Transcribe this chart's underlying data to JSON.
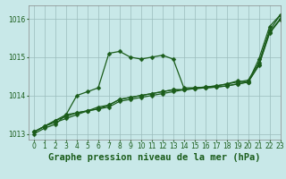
{
  "background_color": "#c8e8e8",
  "grid_color": "#9bbcbc",
  "line_color": "#1a5c1a",
  "title": "Graphe pression niveau de la mer (hPa)",
  "xlim": [
    -0.5,
    23
  ],
  "ylim": [
    1012.85,
    1016.35
  ],
  "yticks": [
    1013,
    1014,
    1015,
    1016
  ],
  "xticks": [
    0,
    1,
    2,
    3,
    4,
    5,
    6,
    7,
    8,
    9,
    10,
    11,
    12,
    13,
    14,
    15,
    16,
    17,
    18,
    19,
    20,
    21,
    22,
    23
  ],
  "series": [
    [
      1013.05,
      1013.2,
      1013.35,
      1013.5,
      1013.55,
      1013.6,
      1013.65,
      1013.7,
      1013.85,
      1013.9,
      1013.95,
      1014.0,
      1014.05,
      1014.1,
      1014.15,
      1014.2,
      1014.22,
      1014.25,
      1014.3,
      1014.35,
      1014.4,
      1014.85,
      1015.7,
      1016.1
    ],
    [
      1013.05,
      1013.2,
      1013.35,
      1013.45,
      1013.55,
      1013.6,
      1013.7,
      1013.75,
      1013.9,
      1013.95,
      1014.0,
      1014.05,
      1014.1,
      1014.15,
      1014.15,
      1014.18,
      1014.2,
      1014.22,
      1014.25,
      1014.3,
      1014.35,
      1014.8,
      1015.65,
      1016.0
    ],
    [
      1013.05,
      1013.2,
      1013.3,
      1013.4,
      1013.5,
      1013.6,
      1013.65,
      1013.75,
      1013.9,
      1013.95,
      1014.0,
      1014.05,
      1014.1,
      1014.15,
      1014.15,
      1014.18,
      1014.2,
      1014.22,
      1014.25,
      1014.3,
      1014.35,
      1014.78,
      1015.62,
      1015.98
    ],
    [
      1013.0,
      1013.15,
      1013.25,
      1013.5,
      1014.0,
      1014.1,
      1014.2,
      1015.1,
      1015.15,
      1015.0,
      1014.95,
      1015.0,
      1015.05,
      1014.95,
      1014.2,
      1014.2,
      1014.22,
      1014.25,
      1014.3,
      1014.38,
      1014.35,
      1014.95,
      1015.8,
      1016.1
    ]
  ],
  "marker": "D",
  "marker_size": 2.5,
  "linewidth": 0.9,
  "title_fontsize": 7.5,
  "tick_fontsize": 5.5,
  "label_color": "#1a5c1a"
}
